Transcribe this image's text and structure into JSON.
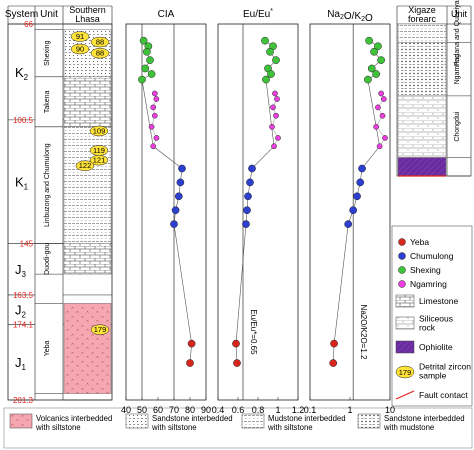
{
  "headers": {
    "system": "System",
    "unit": "Unit",
    "southern_lhasa": [
      "Southern",
      "Lhasa"
    ],
    "xigaze_forearc": [
      "Xigaze",
      "forearc"
    ],
    "unit_right": "Unit"
  },
  "ages": [
    {
      "label": "66",
      "value": 66
    },
    {
      "label": "100.5",
      "value": 100.5
    },
    {
      "label": "145",
      "value": 145
    },
    {
      "label": "163.5",
      "value": 163.5
    },
    {
      "label": "174.1",
      "value": 174.1
    },
    {
      "label": "201.3",
      "value": 201.3
    }
  ],
  "systems": [
    {
      "main": "K",
      "sub": "2",
      "top": 66,
      "bottom": 100.5
    },
    {
      "main": "K",
      "sub": "1",
      "top": 100.5,
      "bottom": 145
    },
    {
      "main": "J",
      "sub": "3",
      "top": 145,
      "bottom": 163.5
    },
    {
      "main": "J",
      "sub": "2",
      "top": 163.5,
      "bottom": 174.1
    },
    {
      "main": "J",
      "sub": "1",
      "top": 174.1,
      "bottom": 201.3
    }
  ],
  "formations_left": [
    {
      "name": "Shexing",
      "top": 68,
      "bottom": 85,
      "pattern": "sandstone-siltstone"
    },
    {
      "name": "Takena",
      "top": 85,
      "bottom": 103,
      "pattern": "limestone"
    },
    {
      "name": "Linbuzong and Chumulong",
      "top": 103,
      "bottom": 145,
      "pattern": "mudstone-siltstone"
    },
    {
      "name": "Duodi-gou",
      "top": 145,
      "bottom": 156,
      "pattern": "limestone"
    },
    {
      "name": "Yeba",
      "top": 166.5,
      "bottom": 199,
      "pattern": "volcanics"
    }
  ],
  "zircon_samples_left": [
    {
      "label": "91",
      "age": 70.5
    },
    {
      "label": "88",
      "age": 72.5
    },
    {
      "label": "90",
      "age": 75
    },
    {
      "label": "88",
      "age": 76.5
    },
    {
      "label": "109",
      "age": 104.5
    },
    {
      "label": "119",
      "age": 111.5
    },
    {
      "label": "121",
      "age": 115
    },
    {
      "label": "122",
      "age": 117
    },
    {
      "label": "179",
      "age": 176
    }
  ],
  "formations_right": [
    {
      "name": "Padana and Qubeiya",
      "top": 66,
      "bottom": 75,
      "pattern": "mudstone-siltstone"
    },
    {
      "name": "Ngamring",
      "top": 75,
      "bottom": 101,
      "pattern": "sandstone-mudstone"
    },
    {
      "name": "Chongdui",
      "top": 101,
      "bottom": 131,
      "pattern": "siliceous"
    },
    {
      "name": "",
      "top": 131,
      "bottom": 140,
      "pattern": "ophiolite"
    }
  ],
  "panels": [
    {
      "title": "CIA",
      "title_parts": [
        {
          "t": "CIA"
        }
      ],
      "scale": "linear",
      "xlim": [
        40,
        90
      ],
      "ticks": [
        {
          "v": 40,
          "l": "40"
        },
        {
          "v": 50,
          "l": "50"
        },
        {
          "v": 60,
          "l": "60"
        },
        {
          "v": 70,
          "l": "70"
        },
        {
          "v": 80,
          "l": "80"
        },
        {
          "v": 90,
          "l": "90"
        }
      ],
      "guides": [
        50,
        70
      ],
      "guide_label": "",
      "yeba": [
        [
          81,
          181
        ],
        [
          80,
          188
        ]
      ],
      "chumulong": [
        [
          75,
          118
        ],
        [
          74,
          123
        ],
        [
          73,
          128
        ],
        [
          71,
          133
        ],
        [
          70,
          138
        ]
      ],
      "shexing": [
        [
          51,
          72
        ],
        [
          54,
          74
        ],
        [
          53,
          76
        ],
        [
          55,
          79
        ],
        [
          52,
          82
        ],
        [
          56,
          84
        ],
        [
          50,
          86
        ]
      ],
      "ngamring": [
        [
          58,
          91
        ],
        [
          59,
          93
        ],
        [
          57,
          96
        ],
        [
          58,
          99
        ],
        [
          56,
          103
        ],
        [
          59,
          107
        ],
        [
          57,
          110
        ]
      ]
    },
    {
      "title": "Eu/Eu*",
      "title_parts": [
        {
          "t": "Eu/Eu"
        },
        {
          "t": "*",
          "sup": true
        }
      ],
      "scale": "linear",
      "xlim": [
        0.4,
        1.2
      ],
      "ticks": [
        {
          "v": 0.4,
          "l": "0.4"
        },
        {
          "v": 0.6,
          "l": "0.6"
        },
        {
          "v": 0.8,
          "l": "0.8"
        },
        {
          "v": 1.0,
          "l": "1"
        },
        {
          "v": 1.2,
          "l": "1.2"
        }
      ],
      "guides": [
        0.65
      ],
      "guide_label": "Eu/Eu*=0.65",
      "yeba": [
        [
          0.58,
          181
        ],
        [
          0.59,
          188
        ]
      ],
      "chumulong": [
        [
          0.74,
          118
        ],
        [
          0.72,
          123
        ],
        [
          0.7,
          128
        ],
        [
          0.69,
          133
        ],
        [
          0.68,
          138
        ]
      ],
      "shexing": [
        [
          0.87,
          72
        ],
        [
          0.95,
          74
        ],
        [
          0.92,
          76
        ],
        [
          0.98,
          79
        ],
        [
          0.9,
          82
        ],
        [
          0.93,
          84
        ],
        [
          0.88,
          86
        ]
      ],
      "ngamring": [
        [
          0.97,
          91
        ],
        [
          0.99,
          93
        ],
        [
          0.95,
          96
        ],
        [
          0.98,
          99
        ],
        [
          0.94,
          103
        ],
        [
          1.0,
          107
        ],
        [
          0.96,
          110
        ]
      ]
    },
    {
      "title": "Na2O/K2O",
      "title_parts": [
        {
          "t": "Na"
        },
        {
          "t": "2",
          "sub": true
        },
        {
          "t": "O/K"
        },
        {
          "t": "2",
          "sub": true
        },
        {
          "t": "O"
        }
      ],
      "scale": "log",
      "xlim": [
        0.1,
        10
      ],
      "ticks": [
        {
          "v": 0.1,
          "l": "0.1"
        },
        {
          "v": 1,
          "l": "1"
        },
        {
          "v": 10,
          "l": "10"
        }
      ],
      "guides": [
        1.2
      ],
      "guide_label": "Na2O/K2O=1.2",
      "yeba": [
        [
          0.4,
          181
        ],
        [
          0.38,
          188
        ]
      ],
      "chumulong": [
        [
          2.0,
          118
        ],
        [
          1.8,
          123
        ],
        [
          1.5,
          128
        ],
        [
          1.2,
          133
        ],
        [
          0.9,
          138
        ]
      ],
      "shexing": [
        [
          3.0,
          72
        ],
        [
          5.0,
          74
        ],
        [
          4.0,
          76
        ],
        [
          6.0,
          79
        ],
        [
          3.5,
          82
        ],
        [
          4.5,
          84
        ],
        [
          2.8,
          86
        ]
      ],
      "ngamring": [
        [
          6.0,
          91
        ],
        [
          7.0,
          93
        ],
        [
          5.0,
          96
        ],
        [
          6.5,
          99
        ],
        [
          4.5,
          103
        ],
        [
          7.5,
          107
        ],
        [
          5.5,
          110
        ]
      ]
    }
  ],
  "legend_samples": [
    {
      "name": "Yeba",
      "color": "#d7261e"
    },
    {
      "name": "Chumulong",
      "color": "#2d3fcf"
    },
    {
      "name": "Shexing",
      "color": "#3fc23a"
    },
    {
      "name": "Ngamring",
      "color": "#ee3fe0"
    }
  ],
  "legend_litho": [
    {
      "label": [
        "Limestone"
      ],
      "pattern": "limestone"
    },
    {
      "label": [
        "Siliceous",
        "rock"
      ],
      "pattern": "siliceous"
    },
    {
      "label": [
        "Ophiolite"
      ],
      "pattern": "ophiolite"
    },
    {
      "label": [
        "Detrital zircon",
        "sample"
      ],
      "pattern": "zircon",
      "badge": "179"
    },
    {
      "label": [
        "Fault contact"
      ],
      "pattern": "fault"
    }
  ],
  "legend_bottom": [
    {
      "label": [
        "Volcanics interbedded",
        "with siltstone"
      ],
      "pattern": "volcanics"
    },
    {
      "label": [
        "Sandstone interbedded",
        "with siltstone"
      ],
      "pattern": "sandstone-siltstone"
    },
    {
      "label": [
        "Mudstone interbedded",
        "with siltstone"
      ],
      "pattern": "mudstone-siltstone"
    },
    {
      "label": [
        "Sandstone interbedded",
        "with mudstone"
      ],
      "pattern": "sandstone-mudstone"
    }
  ],
  "colors": {
    "yeba": "#d7261e",
    "chumulong": "#2d3fcf",
    "shexing": "#3fc23a",
    "ngamring": "#ee3fe0",
    "age_label": "#e2231a",
    "volcanics_fill": "#f4a7b0",
    "ophiolite_fill": "#6a2aa0",
    "zircon_fill": "#ffe23a"
  }
}
